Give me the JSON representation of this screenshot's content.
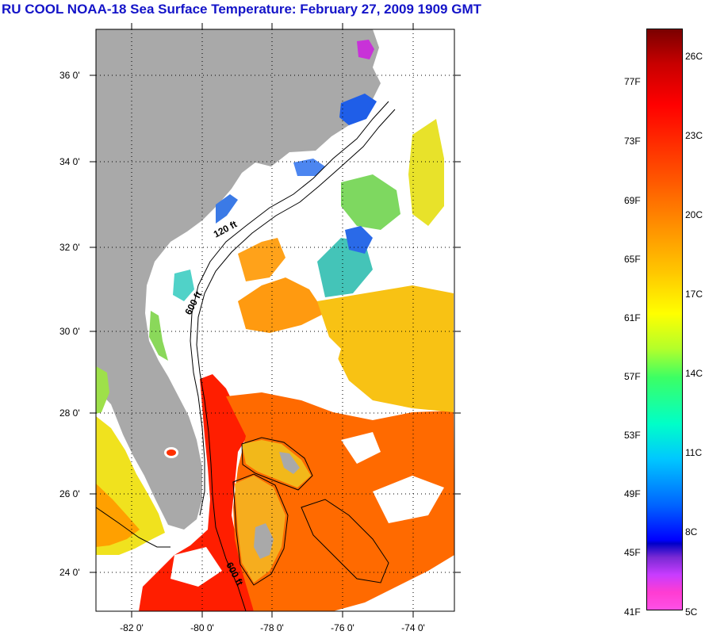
{
  "header": {
    "title": "RU COOL  NOAA-18  Sea Surface Temperature:  February 27, 2009 1909 GMT"
  },
  "map": {
    "lat_labels": [
      "36 0'",
      "34 0'",
      "32 0'",
      "30 0'",
      "28 0'",
      "26 0'",
      "24 0'"
    ],
    "lon_labels": [
      "-82 0'",
      "-80 0'",
      "-78 0'",
      "-76 0'",
      "-74 0'"
    ],
    "isobath_labels": [
      "120 ft",
      "600 ft",
      "600 ft"
    ],
    "colors": {
      "land": "#a9a9a9",
      "ocean_clouds": "#ffffff",
      "gulf_stream": "#ff2a00"
    }
  },
  "colorbar": {
    "fahrenheit_labels": [
      "77F",
      "73F",
      "69F",
      "65F",
      "61F",
      "57F",
      "53F",
      "49F",
      "45F",
      "41F"
    ],
    "celsius_labels": [
      "26C",
      "23C",
      "20C",
      "17C",
      "14C",
      "11C",
      "8C",
      "5C"
    ]
  }
}
